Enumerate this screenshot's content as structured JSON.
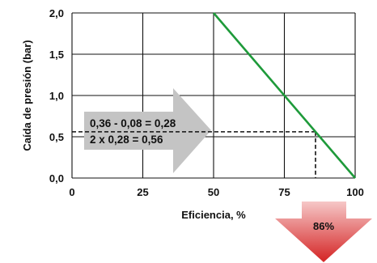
{
  "chart_data": {
    "type": "line",
    "xlabel": "Eficiencia, %",
    "ylabel": "Caída de presión (bar)",
    "xlim": [
      0,
      100
    ],
    "ylim": [
      0,
      2.0
    ],
    "x_ticks": [
      "0",
      "25",
      "50",
      "75",
      "100"
    ],
    "y_ticks": [
      "0,0",
      "0,5",
      "1,0",
      "1,5",
      "2,0"
    ],
    "grid": true,
    "series": [
      {
        "x": [
          50,
          100
        ],
        "y": [
          2.0,
          0.0
        ],
        "color": "#1e9a3a"
      }
    ],
    "reference_point": {
      "x": 86,
      "y": 0.56
    },
    "callout": {
      "line1": "0,36 - 0,08 = 0,28",
      "line2": "2 x 0,28 = 0,56",
      "color": "#c4c4c4"
    },
    "result": {
      "label": "86%",
      "color_top": "#f6c7c7",
      "color_bottom": "#d42424"
    }
  }
}
